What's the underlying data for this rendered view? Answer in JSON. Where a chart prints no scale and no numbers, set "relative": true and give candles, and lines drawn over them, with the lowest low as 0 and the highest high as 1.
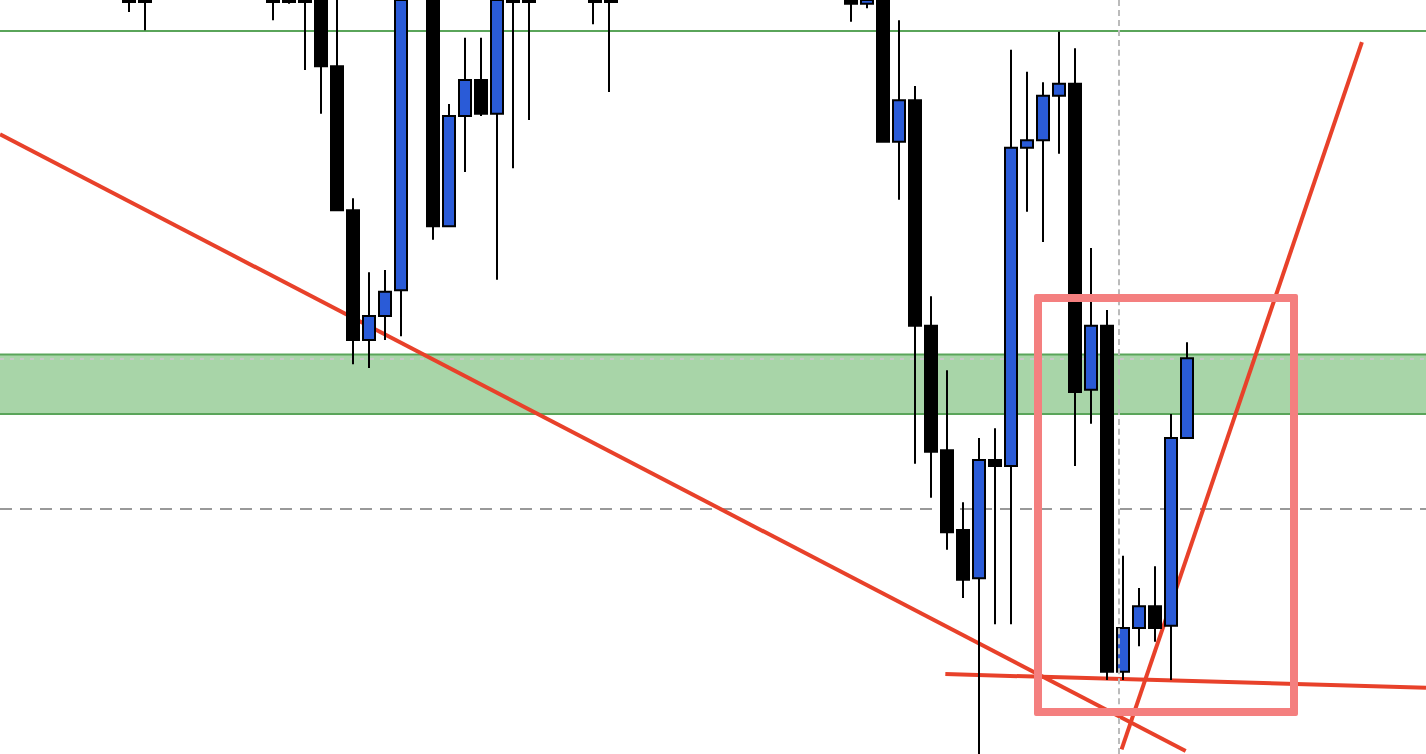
{
  "chart_data": {
    "type": "candlestick",
    "relative": true,
    "legend": false,
    "categories": [
      null,
      null,
      null,
      null,
      null,
      null,
      null,
      null,
      null,
      null,
      null,
      null,
      null,
      null,
      null,
      null,
      null,
      null,
      null,
      null,
      null,
      null,
      null,
      null,
      null,
      null,
      null,
      null,
      null,
      null,
      null,
      null,
      null,
      null,
      null,
      null,
      null,
      null,
      null,
      null,
      null,
      null,
      null,
      null,
      null,
      null,
      null,
      null,
      null,
      null,
      null,
      null,
      null,
      null,
      null,
      null,
      null,
      null,
      null,
      null,
      null,
      null,
      null,
      null,
      null,
      null,
      null,
      null,
      null,
      null,
      null,
      null,
      null,
      null,
      null,
      null,
      null,
      null,
      null,
      null,
      null,
      null,
      null,
      null,
      null,
      null,
      null,
      null,
      null,
      null
    ],
    "ohlc": [
      null,
      null,
      null,
      null,
      null,
      null,
      null,
      null,
      [
        1,
        1,
        0.984,
        1
      ],
      [
        1,
        1,
        0.96,
        1
      ],
      null,
      null,
      null,
      null,
      null,
      null,
      null,
      [
        1,
        1,
        0.973,
        1
      ],
      [
        1,
        1,
        0.995,
        1
      ],
      [
        1,
        1,
        0.907,
        1
      ],
      [
        1,
        1,
        0.849,
        0.912
      ],
      [
        0.912,
        1,
        0.721,
        0.721
      ],
      [
        0.721,
        0.737,
        0.517,
        0.549
      ],
      [
        0.549,
        0.639,
        0.512,
        0.581
      ],
      [
        0.581,
        0.642,
        0.549,
        0.613
      ],
      [
        0.615,
        1,
        0.554,
        1
      ],
      null,
      [
        1,
        1,
        0.682,
        0.7
      ],
      [
        0.7,
        0.862,
        0.7,
        0.846
      ],
      [
        0.846,
        0.95,
        0.772,
        0.894
      ],
      [
        0.894,
        0.95,
        0.846,
        0.849
      ],
      [
        0.849,
        1,
        0.629,
        1
      ],
      [
        1,
        1,
        0.777,
        1
      ],
      [
        1,
        1,
        0.841,
        1
      ],
      null,
      null,
      null,
      [
        1,
        1,
        0.968,
        1
      ],
      [
        1,
        1,
        0.878,
        1
      ],
      null,
      null,
      null,
      null,
      null,
      null,
      null,
      null,
      null,
      null,
      null,
      null,
      null,
      null,
      [
        1,
        1,
        0.971,
        0.995
      ],
      [
        0.995,
        1,
        0.989,
        1
      ],
      [
        1,
        1,
        0.812,
        0.812
      ],
      [
        0.812,
        0.973,
        0.735,
        0.867
      ],
      [
        0.867,
        0.886,
        0.385,
        0.568
      ],
      [
        0.568,
        0.607,
        0.34,
        0.401
      ],
      [
        0.403,
        0.509,
        0.271,
        0.294
      ],
      [
        0.297,
        0.334,
        0.207,
        0.231
      ],
      [
        0.233,
        0.419,
        0,
        0.39
      ],
      [
        0.39,
        0.432,
        0.172,
        0.382
      ],
      [
        0.382,
        0.934,
        0.172,
        0.804
      ],
      [
        0.804,
        0.905,
        0.719,
        0.814
      ],
      [
        0.814,
        0.891,
        0.679,
        0.873
      ],
      [
        0.873,
        0.958,
        0.796,
        0.889
      ],
      [
        0.889,
        0.936,
        0.382,
        0.48
      ],
      [
        0.483,
        0.671,
        0.438,
        0.568
      ],
      [
        0.568,
        0.589,
        0.098,
        0.109
      ],
      [
        0.109,
        0.263,
        0.098,
        0.167
      ],
      [
        0.167,
        0.22,
        0.143,
        0.196
      ],
      [
        0.196,
        0.249,
        0.149,
        0.167
      ],
      [
        0.17,
        0.451,
        0.098,
        0.419
      ],
      [
        0.419,
        0.546,
        0.419,
        0.525
      ],
      null,
      null,
      null,
      null,
      null,
      null,
      null,
      null,
      null,
      null,
      null,
      null,
      null,
      null,
      null
    ],
    "colors": [
      null,
      null,
      null,
      null,
      null,
      null,
      null,
      null,
      "#000000",
      "#000000",
      null,
      null,
      null,
      null,
      null,
      null,
      null,
      "#000000",
      "#000000",
      "#000000",
      "#000000",
      "#000000",
      "#000000",
      "#2a5bd7",
      "#2a5bd7",
      "#2a5bd7",
      null,
      "#000000",
      "#2a5bd7",
      "#2a5bd7",
      "#000000",
      "#2a5bd7",
      "#000000",
      "#000000",
      null,
      null,
      null,
      "#000000",
      "#000000",
      null,
      null,
      null,
      null,
      null,
      null,
      null,
      null,
      null,
      null,
      null,
      null,
      null,
      null,
      "#000000",
      "#2a5bd7",
      "#000000",
      "#2a5bd7",
      "#000000",
      "#000000",
      "#000000",
      "#000000",
      "#2a5bd7",
      "#000000",
      "#2a5bd7",
      "#2a5bd7",
      "#2a5bd7",
      "#2a5bd7",
      "#000000",
      "#2a5bd7",
      "#000000",
      "#2a5bd7",
      "#2a5bd7",
      "#000000",
      "#2a5bd7",
      "#2a5bd7",
      null,
      null,
      null,
      null,
      null,
      null,
      null,
      null,
      null,
      null,
      null,
      null,
      null,
      null,
      null
    ],
    "series": [
      {
        "type": "line",
        "values": [
          0.822,
          null,
          null,
          null,
          null,
          null,
          null,
          null,
          null,
          null,
          null,
          null,
          null,
          null,
          null,
          null,
          null,
          null,
          null,
          null,
          null,
          null,
          null,
          null,
          null,
          null,
          null,
          null,
          null,
          null,
          null,
          null,
          null,
          null,
          null,
          null,
          null,
          null,
          null,
          null,
          null,
          null,
          null,
          null,
          null,
          null,
          null,
          null,
          null,
          null,
          null,
          null,
          null,
          null,
          null,
          null,
          null,
          null,
          null,
          null,
          null,
          null,
          null,
          null,
          null,
          null,
          null,
          null,
          null,
          null,
          null,
          null,
          null,
          null,
          0.004,
          null,
          null,
          null,
          null,
          null,
          null,
          null,
          null,
          null,
          null,
          null,
          null,
          null,
          null,
          null
        ],
        "color": "#e8412a"
      },
      {
        "type": "line",
        "values": [
          null,
          null,
          null,
          null,
          null,
          null,
          null,
          null,
          null,
          null,
          null,
          null,
          null,
          null,
          null,
          null,
          null,
          null,
          null,
          null,
          null,
          null,
          null,
          null,
          null,
          null,
          null,
          null,
          null,
          null,
          null,
          null,
          null,
          null,
          null,
          null,
          null,
          null,
          null,
          null,
          null,
          null,
          null,
          null,
          null,
          null,
          null,
          null,
          null,
          null,
          null,
          null,
          null,
          null,
          null,
          null,
          null,
          null,
          null,
          null,
          null,
          null,
          null,
          null,
          null,
          null,
          null,
          null,
          null,
          null,
          0.006,
          null,
          null,
          null,
          null,
          null,
          null,
          null,
          null,
          null,
          null,
          null,
          null,
          null,
          null,
          0.944,
          null,
          null,
          null,
          null
        ],
        "color": "#e8412a"
      },
      {
        "type": "line",
        "values": [
          null,
          null,
          null,
          null,
          null,
          null,
          null,
          null,
          null,
          null,
          null,
          null,
          null,
          null,
          null,
          null,
          null,
          null,
          null,
          null,
          null,
          null,
          null,
          null,
          null,
          null,
          null,
          null,
          null,
          null,
          null,
          null,
          null,
          null,
          null,
          null,
          null,
          null,
          null,
          null,
          null,
          null,
          null,
          null,
          null,
          null,
          null,
          null,
          null,
          null,
          null,
          null,
          null,
          null,
          null,
          null,
          null,
          null,
          null,
          0.106,
          null,
          null,
          null,
          null,
          null,
          null,
          null,
          null,
          null,
          null,
          null,
          null,
          null,
          null,
          null,
          null,
          null,
          null,
          null,
          null,
          null,
          null,
          null,
          null,
          null,
          null,
          null,
          null,
          null,
          0.088
        ],
        "color": "#e8412a"
      }
    ],
    "marker": "none",
    "ref_lines": [
      {
        "axis": "y",
        "value": 0.96,
        "color": "#5aa55a",
        "line_style": "solid"
      },
      {
        "axis": "y",
        "value": 0.525,
        "color": "#c8c8c8",
        "line_style": "dotted"
      },
      {
        "axis": "y",
        "value": 0.326,
        "color": "#999999",
        "line_style": "dashed"
      }
    ],
    "bands": [
      {
        "axis": "y",
        "from": 0.451,
        "to": 0.53,
        "color": "#a8d5a8"
      }
    ]
  }
}
